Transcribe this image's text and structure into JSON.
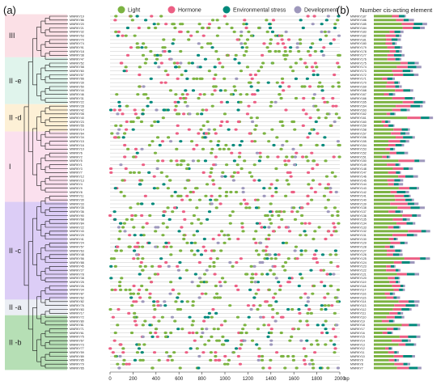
{
  "figure": {
    "panel_a": "(a)",
    "panel_b": "(b)",
    "panel_b_title": "Number cis-acting element"
  },
  "legend": [
    {
      "name": "Light",
      "color": "#7cb342"
    },
    {
      "name": "Hormone",
      "color": "#ec5f84"
    },
    {
      "name": "Environmental stress",
      "color": "#00897b"
    },
    {
      "name": "Development",
      "color": "#9e98bc"
    }
  ],
  "groups": [
    {
      "label": "III",
      "first": 0,
      "count": 11,
      "color": "#fbe0e6"
    },
    {
      "label": "II -e",
      "first": 11,
      "count": 12,
      "color": "#e0f4ec"
    },
    {
      "label": "II -d",
      "first": 23,
      "count": 7,
      "color": "#fdf0d6"
    },
    {
      "label": "I",
      "first": 30,
      "count": 18,
      "color": "#fbe0ee"
    },
    {
      "label": "II -c",
      "first": 48,
      "count": 25,
      "color": "#dccdf6"
    },
    {
      "label": "II -a",
      "first": 73,
      "count": 4,
      "color": "#ebeef4"
    },
    {
      "label": "II -b",
      "first": 77,
      "count": 14,
      "color": "#b6dfb5"
    }
  ],
  "genes_a": [
    "MWRKY19",
    "MWRKY86",
    "MWRKY20",
    "MWRKY21",
    "MWRKY32",
    "MWRKY53",
    "MWRKY70",
    "MWRKY74",
    "MWRKY91",
    "MWRKY18",
    "MWRKY38",
    "MWRKY47",
    "MWRKY52",
    "MWRKY58",
    "MWRKY60",
    "MWRKY57",
    "MWRKY66",
    "MWRKY39",
    "MWRKY50",
    "MWRKY44",
    "MWRKY46",
    "MWRKY31",
    "MWRKY22",
    "MWRKY28",
    "MWRKY42",
    "MWRKY08",
    "MWRKY40",
    "MWRKY23",
    "MWRKY55",
    "MWRKY14",
    "MWRKY64",
    "MWRKY34",
    "MWRKY15",
    "MWRKY16",
    "MWRKY10",
    "MWRKY6",
    "MWRKY2",
    "MWRKY5",
    "MWRKY1",
    "MWRKY3",
    "MWRKY7",
    "MWRKY12",
    "MWRKY13",
    "MWRKY4",
    "MWRKY9",
    "MWRKY8",
    "MWRKY11",
    "MWRKY30",
    "MWRKY33",
    "MWRKY35",
    "MWRKY36",
    "MWRKY90",
    "MWRKY68",
    "MWRKY84",
    "MWRKY22",
    "MWRKY43",
    "MWRKY29",
    "MWRKY41",
    "MWRKY24",
    "MWRKY57",
    "MWRKY63",
    "MWRKY48",
    "MWRKY56",
    "MWRKY88",
    "MWRKY45",
    "MWRKY27",
    "MWRKY78",
    "MWRKY38",
    "MWRKY25",
    "MWRKY26",
    "MWRKY34",
    "MWRKY87",
    "MWRKY62",
    "MWRKY82",
    "MWRKY76",
    "MWRKY83",
    "MWRKY17",
    "MWRKY72",
    "MWRKY80",
    "MWRKY81",
    "MWRKY71",
    "MWRKY61",
    "MWRKY75",
    "MWRKY67",
    "MWRKY73",
    "MWRKY77",
    "MWRKY59",
    "MWRKY89",
    "MWRKY85",
    "MWRKY79",
    "MWRKY65"
  ],
  "genes_b": [
    "MWRKY187",
    "MWRKY186",
    "MWRKY185",
    "MWRKY184",
    "MWRKY183",
    "MWRKY182",
    "MWRKY181",
    "MWRKY180",
    "MWRKY179",
    "MWRKY178",
    "MWRKY177",
    "MWRKY176",
    "MWRKY175",
    "MWRKY174",
    "MWRKY173",
    "MWRKY172",
    "MWRKY171",
    "MWRKY170",
    "MWRKY169",
    "MWRKY168",
    "MWRKY167",
    "MWRKY166",
    "MWRKY165",
    "MWRKY164",
    "MWRKY163",
    "MWRKY162",
    "MWRKY161",
    "MWRKY160",
    "MWRKY159",
    "MWRKY158",
    "MWRKY157",
    "MWRKY156",
    "MWRKY155",
    "MWRKY154",
    "MWRKY153",
    "MWRKY152",
    "MWRKY151",
    "MWRKY150",
    "MWRKY149",
    "MWRKY148",
    "MWRKY147",
    "MWRKY146",
    "MWRKY145",
    "MWRKY144",
    "MWRKY143",
    "MWRKY142",
    "MWRKY141",
    "MWRKY140",
    "MWRKY139",
    "MWRKY138",
    "MWRKY137",
    "MWRKY136",
    "MWRKY135",
    "MWRKY134",
    "MWRKY133",
    "MWRKY132",
    "MWRKY131",
    "MWRKY130",
    "MWRKY129",
    "MWRKY128",
    "MWRKY127",
    "MWRKY126",
    "MWRKY125",
    "MWRKY124",
    "MWRKY123",
    "MWRKY122",
    "MWRKY121",
    "MWRKY120",
    "MWRKY119",
    "MWRKY118",
    "MWRKY117",
    "MWRKY116",
    "MWRKY115",
    "MWRKY114",
    "MWRKY113",
    "MWRKY112",
    "MWRKY111",
    "MWRKY110",
    "MWRKY19",
    "MWRKY18",
    "MWRKY17",
    "MWRKY16",
    "MWRKY15",
    "MWRKY14",
    "MWRKY13",
    "MWRKY12",
    "MWRKY11",
    "MWRKY10",
    "MWRKY9",
    "MWRKY8",
    "MWRKY7"
  ],
  "x_axis": {
    "ticks": [
      0,
      200,
      400,
      600,
      800,
      1000,
      1200,
      1400,
      1600,
      1800,
      2000
    ],
    "unit": "bp",
    "max": 2000
  }
}
